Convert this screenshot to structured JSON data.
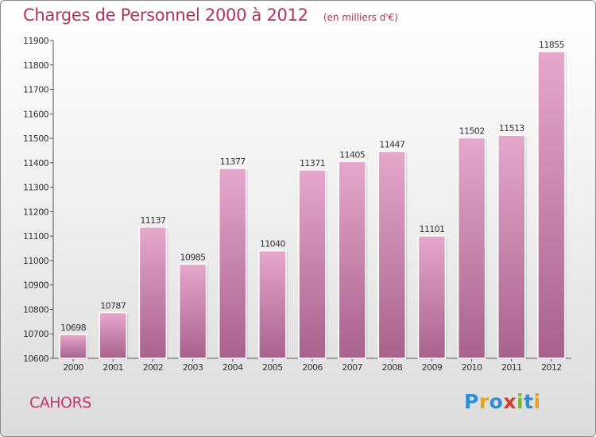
{
  "title": "Charges de Personnel 2000 à 2012",
  "unit_note": "(en milliers d'€)",
  "location": "CAHORS",
  "logo": {
    "text": "Proxiti",
    "letters": [
      {
        "ch": "P",
        "color": "#2e8fd6"
      },
      {
        "ch": "r",
        "color": "#e8a21a"
      },
      {
        "ch": "o",
        "color": "#2e8fd6"
      },
      {
        "ch": "x",
        "color": "#d93a2b"
      },
      {
        "ch": "i",
        "color": "#7ab730"
      },
      {
        "ch": "t",
        "color": "#2e8fd6"
      },
      {
        "ch": "i",
        "color": "#e8a21a"
      }
    ]
  },
  "colors": {
    "bar_light": "#e5a8cb",
    "bar_dark": "#a8628c",
    "bar_border": "#ffffff",
    "text_accent": "#b5315e"
  },
  "chart_data": {
    "type": "bar",
    "title": "Charges de Personnel 2000 à 2012",
    "unit": "(en milliers d'€)",
    "categories": [
      "2000",
      "2001",
      "2002",
      "2003",
      "2004",
      "2005",
      "2006",
      "2007",
      "2008",
      "2009",
      "2010",
      "2011",
      "2012"
    ],
    "values": [
      10698,
      10787,
      11137,
      10985,
      11377,
      11040,
      11371,
      11405,
      11447,
      11101,
      11502,
      11513,
      11855
    ],
    "ylim": [
      10600,
      11900
    ],
    "yticks": [
      10600,
      10700,
      10800,
      10900,
      11000,
      11100,
      11200,
      11300,
      11400,
      11500,
      11600,
      11700,
      11800,
      11900
    ],
    "xlabel": "",
    "ylabel": "",
    "grid": false,
    "data_labels": true
  }
}
